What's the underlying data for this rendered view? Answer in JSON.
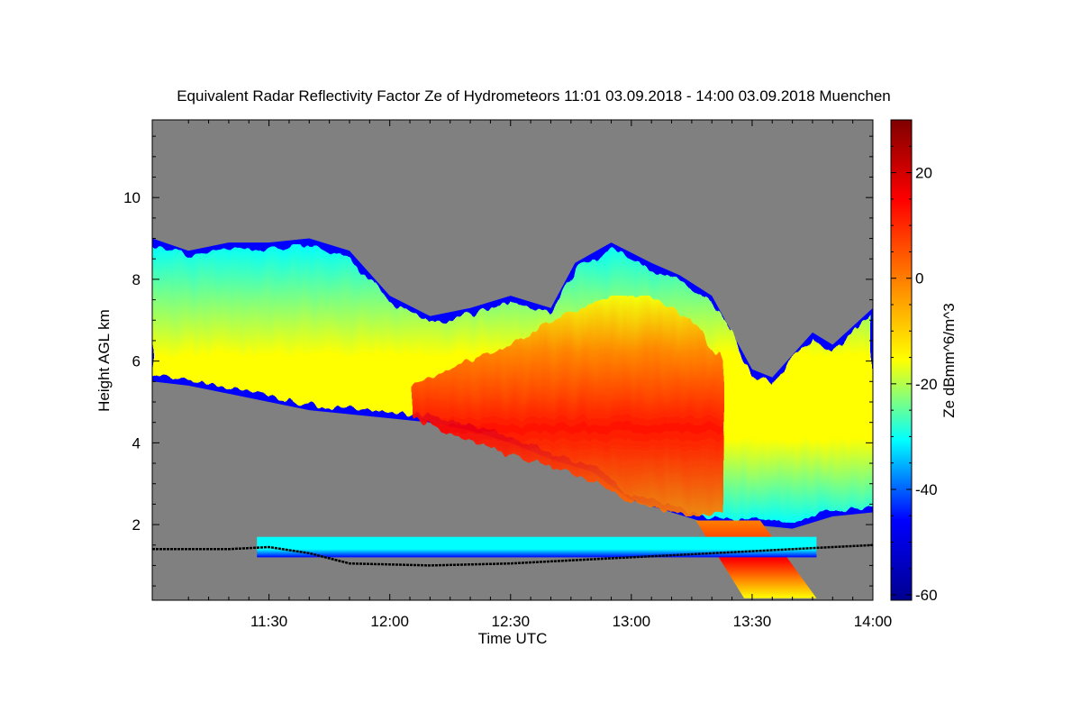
{
  "chart_data": {
    "type": "heatmap",
    "title": "Equivalent Radar Reflectivity Factor Ze of Hydrometeors    11:01 03.09.2018 - 14:00 03.09.2018 Muenchen",
    "xlabel": "Time UTC",
    "ylabel": "Height AGL km",
    "colorbar_label": "Ze dBmm^6/m^3",
    "x_ticks": [
      "11:30",
      "12:00",
      "12:30",
      "13:00",
      "13:30",
      "14:00"
    ],
    "x_tick_minutes": [
      690,
      720,
      750,
      780,
      810,
      840
    ],
    "xlim_minutes": [
      661,
      840
    ],
    "y_ticks": [
      2,
      4,
      6,
      8,
      10
    ],
    "ylim": [
      0.15,
      11.9
    ],
    "colorbar_ticks": [
      20,
      0,
      -20,
      -40,
      -60
    ],
    "colorbar_range": [
      -61,
      30
    ],
    "background_color": "#808080",
    "colormap": [
      "#00008f",
      "#0000ff",
      "#00ffff",
      "#ffff00",
      "#ff8000",
      "#ff0000",
      "#800000"
    ],
    "cloud_base_color": "#000000",
    "echo_top": [
      [
        661,
        9.0
      ],
      [
        670,
        8.7
      ],
      [
        680,
        8.9
      ],
      [
        690,
        8.9
      ],
      [
        700,
        9.0
      ],
      [
        710,
        8.7
      ],
      [
        720,
        7.6
      ],
      [
        730,
        7.1
      ],
      [
        740,
        7.3
      ],
      [
        750,
        7.6
      ],
      [
        760,
        7.3
      ],
      [
        766,
        8.4
      ],
      [
        775,
        8.9
      ],
      [
        785,
        8.4
      ],
      [
        792,
        8.1
      ],
      [
        800,
        7.6
      ],
      [
        810,
        5.8
      ],
      [
        815,
        5.6
      ],
      [
        825,
        6.7
      ],
      [
        830,
        6.4
      ],
      [
        840,
        7.3
      ]
    ],
    "echo_base": [
      [
        661,
        5.5
      ],
      [
        670,
        5.4
      ],
      [
        680,
        5.2
      ],
      [
        690,
        5.0
      ],
      [
        700,
        4.8
      ],
      [
        710,
        4.7
      ],
      [
        720,
        4.6
      ],
      [
        730,
        4.5
      ],
      [
        740,
        4.3
      ],
      [
        750,
        4.0
      ],
      [
        760,
        3.6
      ],
      [
        770,
        3.3
      ],
      [
        780,
        2.6
      ],
      [
        790,
        2.3
      ],
      [
        800,
        2.0
      ],
      [
        810,
        2.0
      ],
      [
        820,
        1.9
      ],
      [
        830,
        2.2
      ],
      [
        840,
        2.3
      ]
    ],
    "core_top": [
      [
        725,
        5.4
      ],
      [
        750,
        6.4
      ],
      [
        765,
        7.2
      ],
      [
        775,
        7.6
      ],
      [
        785,
        7.6
      ],
      [
        795,
        7.0
      ],
      [
        803,
        6.0
      ]
    ],
    "core_base": [
      [
        725,
        4.6
      ],
      [
        750,
        3.7
      ],
      [
        765,
        3.3
      ],
      [
        775,
        2.8
      ],
      [
        785,
        2.4
      ],
      [
        795,
        2.2
      ],
      [
        803,
        2.3
      ]
    ],
    "precip_shaft": [
      [
        796,
        2.1
      ],
      [
        812,
        2.1
      ],
      [
        826,
        0.2
      ],
      [
        808,
        0.2
      ]
    ],
    "low_layer": {
      "top_height": 1.7,
      "base_height": 1.2,
      "start_minute": 687,
      "end_minute": 826
    },
    "cloud_base": [
      [
        661,
        1.4
      ],
      [
        680,
        1.4
      ],
      [
        690,
        1.45
      ],
      [
        700,
        1.3
      ],
      [
        710,
        1.05
      ],
      [
        730,
        1.0
      ],
      [
        750,
        1.05
      ],
      [
        770,
        1.15
      ],
      [
        790,
        1.25
      ],
      [
        810,
        1.35
      ],
      [
        830,
        1.45
      ],
      [
        840,
        1.5
      ]
    ]
  }
}
